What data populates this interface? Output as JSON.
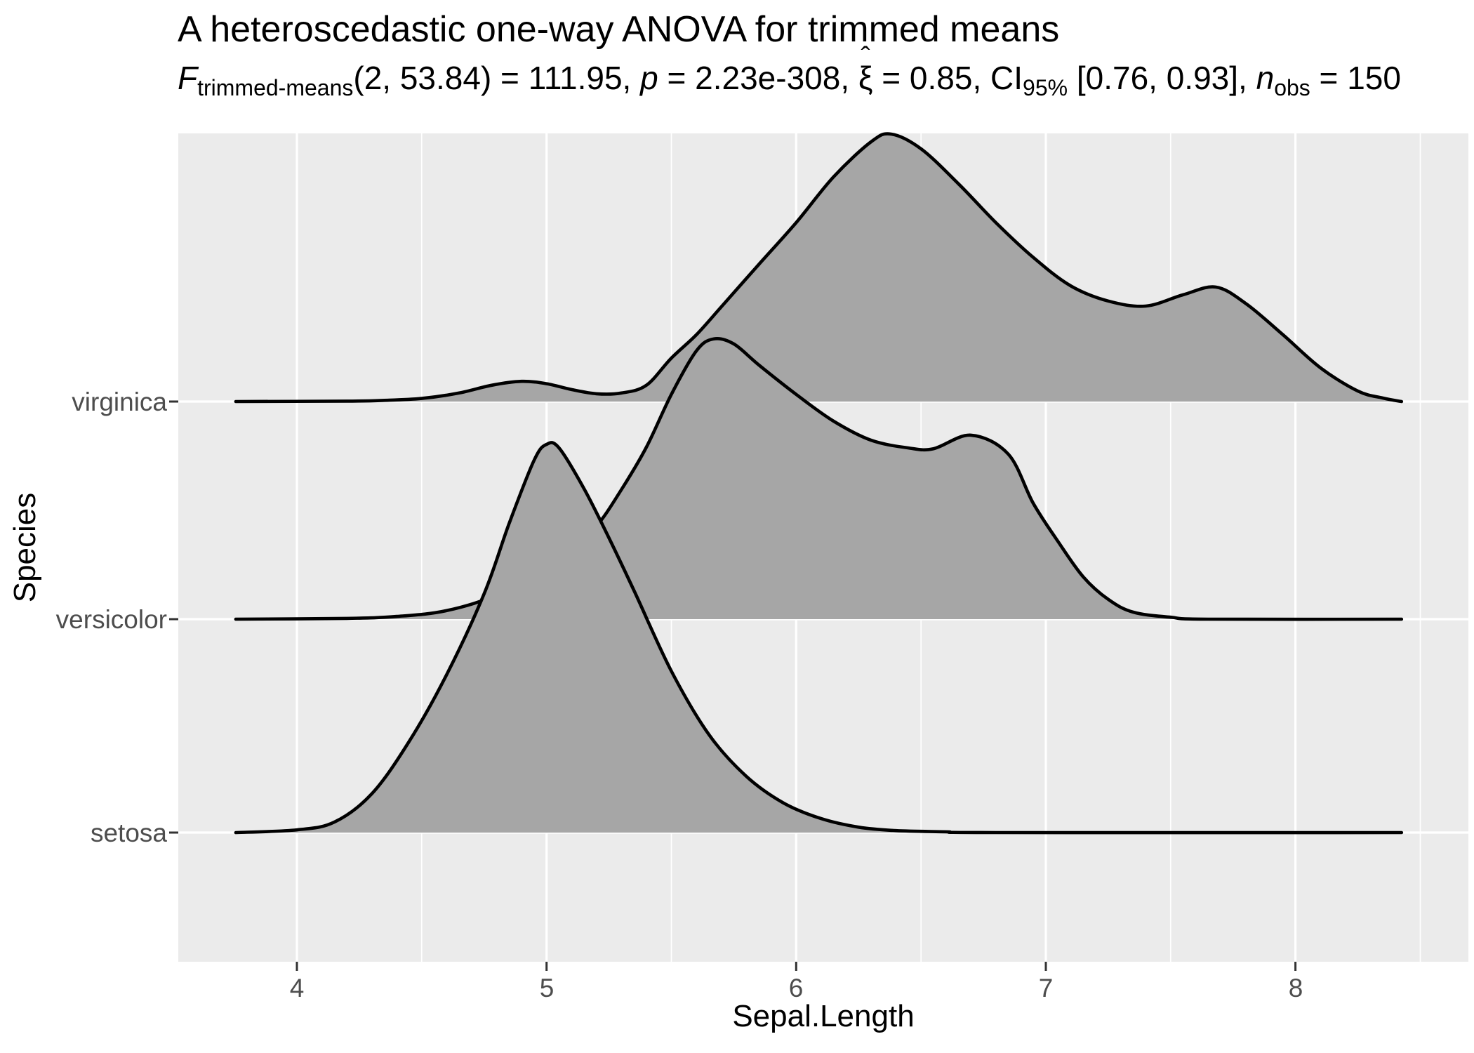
{
  "title": "A heteroscedastic one-way ANOVA for trimmed means",
  "subtitle_parts": [
    {
      "t": "F",
      "s": "i"
    },
    {
      "t": "trimmed-means",
      "s": "sub"
    },
    {
      "t": "(2, 53.84) = 111.95, ",
      "s": ""
    },
    {
      "t": "p",
      "s": "i"
    },
    {
      "t": " = 2.23e-308, ",
      "s": ""
    },
    {
      "t": "ξ",
      "s": "xihat"
    },
    {
      "t": " = 0.85, CI",
      "s": ""
    },
    {
      "t": "95%",
      "s": "sub"
    },
    {
      "t": " [0.76, 0.93], ",
      "s": ""
    },
    {
      "t": "n",
      "s": "i"
    },
    {
      "t": "obs",
      "s": "sub"
    },
    {
      "t": " = 150",
      "s": ""
    }
  ],
  "colors": {
    "panel_bg": "#EBEBEB",
    "grid": "#FFFFFF",
    "ridge_fill": "#A6A6A6",
    "ridge_line": "#000000",
    "tick_mark": "#333333",
    "tick_label": "#4D4D4D",
    "text": "#000000"
  },
  "chart_data": {
    "type": "area",
    "variant": "ridgeline-density",
    "title": "A heteroscedastic one-way ANOVA for trimmed means",
    "xlabel": "Sepal.Length",
    "ylabel": "Species",
    "x_axis": {
      "ticks": [
        4,
        5,
        6,
        7,
        8
      ],
      "minor_ticks": [
        4.5,
        5.5,
        6.5,
        7.5,
        8.5
      ],
      "range": [
        3.52,
        8.69
      ]
    },
    "y_axis": {
      "categories_top_to_bottom": [
        "virginica",
        "versicolor",
        "setosa"
      ]
    },
    "height_unit": "density height as fraction of tallest ridge (setosa peak = 1)",
    "series": [
      {
        "name": "virginica",
        "points": [
          [
            3.755,
            0
          ],
          [
            4.2,
            0.001
          ],
          [
            4.35,
            0.003
          ],
          [
            4.5,
            0.008
          ],
          [
            4.65,
            0.022
          ],
          [
            4.78,
            0.042
          ],
          [
            4.9,
            0.052
          ],
          [
            5.0,
            0.046
          ],
          [
            5.1,
            0.031
          ],
          [
            5.2,
            0.02
          ],
          [
            5.3,
            0.022
          ],
          [
            5.4,
            0.042
          ],
          [
            5.5,
            0.112
          ],
          [
            5.6,
            0.172
          ],
          [
            5.7,
            0.244
          ],
          [
            5.85,
            0.353
          ],
          [
            6.0,
            0.461
          ],
          [
            6.15,
            0.579
          ],
          [
            6.3,
            0.669
          ],
          [
            6.38,
            0.689
          ],
          [
            6.5,
            0.651
          ],
          [
            6.65,
            0.561
          ],
          [
            6.8,
            0.461
          ],
          [
            6.95,
            0.371
          ],
          [
            7.1,
            0.298
          ],
          [
            7.25,
            0.259
          ],
          [
            7.4,
            0.246
          ],
          [
            7.55,
            0.275
          ],
          [
            7.68,
            0.295
          ],
          [
            7.8,
            0.253
          ],
          [
            7.95,
            0.172
          ],
          [
            8.1,
            0.087
          ],
          [
            8.25,
            0.027
          ],
          [
            8.35,
            0.009
          ],
          [
            8.425,
            0
          ]
        ]
      },
      {
        "name": "versicolor",
        "points": [
          [
            3.755,
            0
          ],
          [
            4.2,
            0.002
          ],
          [
            4.4,
            0.007
          ],
          [
            4.6,
            0.022
          ],
          [
            4.8,
            0.063
          ],
          [
            4.95,
            0.127
          ],
          [
            5.1,
            0.19
          ],
          [
            5.2,
            0.24
          ],
          [
            5.3,
            0.334
          ],
          [
            5.4,
            0.443
          ],
          [
            5.5,
            0.579
          ],
          [
            5.6,
            0.691
          ],
          [
            5.67,
            0.722
          ],
          [
            5.75,
            0.709
          ],
          [
            5.85,
            0.655
          ],
          [
            6.0,
            0.579
          ],
          [
            6.15,
            0.51
          ],
          [
            6.3,
            0.461
          ],
          [
            6.45,
            0.441
          ],
          [
            6.55,
            0.439
          ],
          [
            6.7,
            0.474
          ],
          [
            6.85,
            0.425
          ],
          [
            6.95,
            0.298
          ],
          [
            7.05,
            0.199
          ],
          [
            7.15,
            0.109
          ],
          [
            7.25,
            0.051
          ],
          [
            7.35,
            0.018
          ],
          [
            7.5,
            0.005
          ],
          [
            7.65,
            0
          ],
          [
            8.425,
            0
          ]
        ]
      },
      {
        "name": "setosa",
        "points": [
          [
            3.755,
            0
          ],
          [
            4.0,
            0.007
          ],
          [
            4.15,
            0.027
          ],
          [
            4.3,
            0.1
          ],
          [
            4.45,
            0.235
          ],
          [
            4.6,
            0.407
          ],
          [
            4.75,
            0.615
          ],
          [
            4.85,
            0.796
          ],
          [
            4.95,
            0.959
          ],
          [
            5.0,
            1.0
          ],
          [
            5.05,
            0.991
          ],
          [
            5.15,
            0.886
          ],
          [
            5.25,
            0.759
          ],
          [
            5.35,
            0.624
          ],
          [
            5.5,
            0.416
          ],
          [
            5.65,
            0.253
          ],
          [
            5.8,
            0.145
          ],
          [
            5.95,
            0.076
          ],
          [
            6.1,
            0.036
          ],
          [
            6.25,
            0.014
          ],
          [
            6.4,
            0.005
          ],
          [
            6.6,
            0.002
          ],
          [
            6.8,
            0
          ],
          [
            8.425,
            0
          ]
        ]
      }
    ]
  }
}
